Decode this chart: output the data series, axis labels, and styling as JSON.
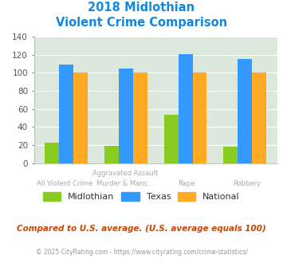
{
  "title_line1": "2018 Midlothian",
  "title_line2": "Violent Crime Comparison",
  "cat_labels_top": [
    "",
    "Aggravated Assault",
    "",
    ""
  ],
  "cat_labels_bot": [
    "All Violent Crime",
    "Murder & Mans...",
    "Rape",
    "Robbery"
  ],
  "midlothian": [
    23,
    19,
    54,
    18
  ],
  "texas": [
    109,
    105,
    121,
    115
  ],
  "national": [
    100,
    100,
    100,
    100
  ],
  "color_midlothian": "#88cc22",
  "color_texas": "#3399ff",
  "color_national": "#ffaa22",
  "ylim": [
    0,
    140
  ],
  "yticks": [
    0,
    20,
    40,
    60,
    80,
    100,
    120,
    140
  ],
  "footer_text": "Compared to U.S. average. (U.S. average equals 100)",
  "copyright_text": "© 2025 CityRating.com - https://www.cityrating.com/crime-statistics/",
  "plot_bg_color": "#dce8dc",
  "title_color": "#1188dd",
  "footer_color": "#cc4400",
  "copyright_color": "#999999",
  "legend_text_color": "#333333",
  "tick_color": "#555555",
  "xlabel_color": "#aaaaaa"
}
